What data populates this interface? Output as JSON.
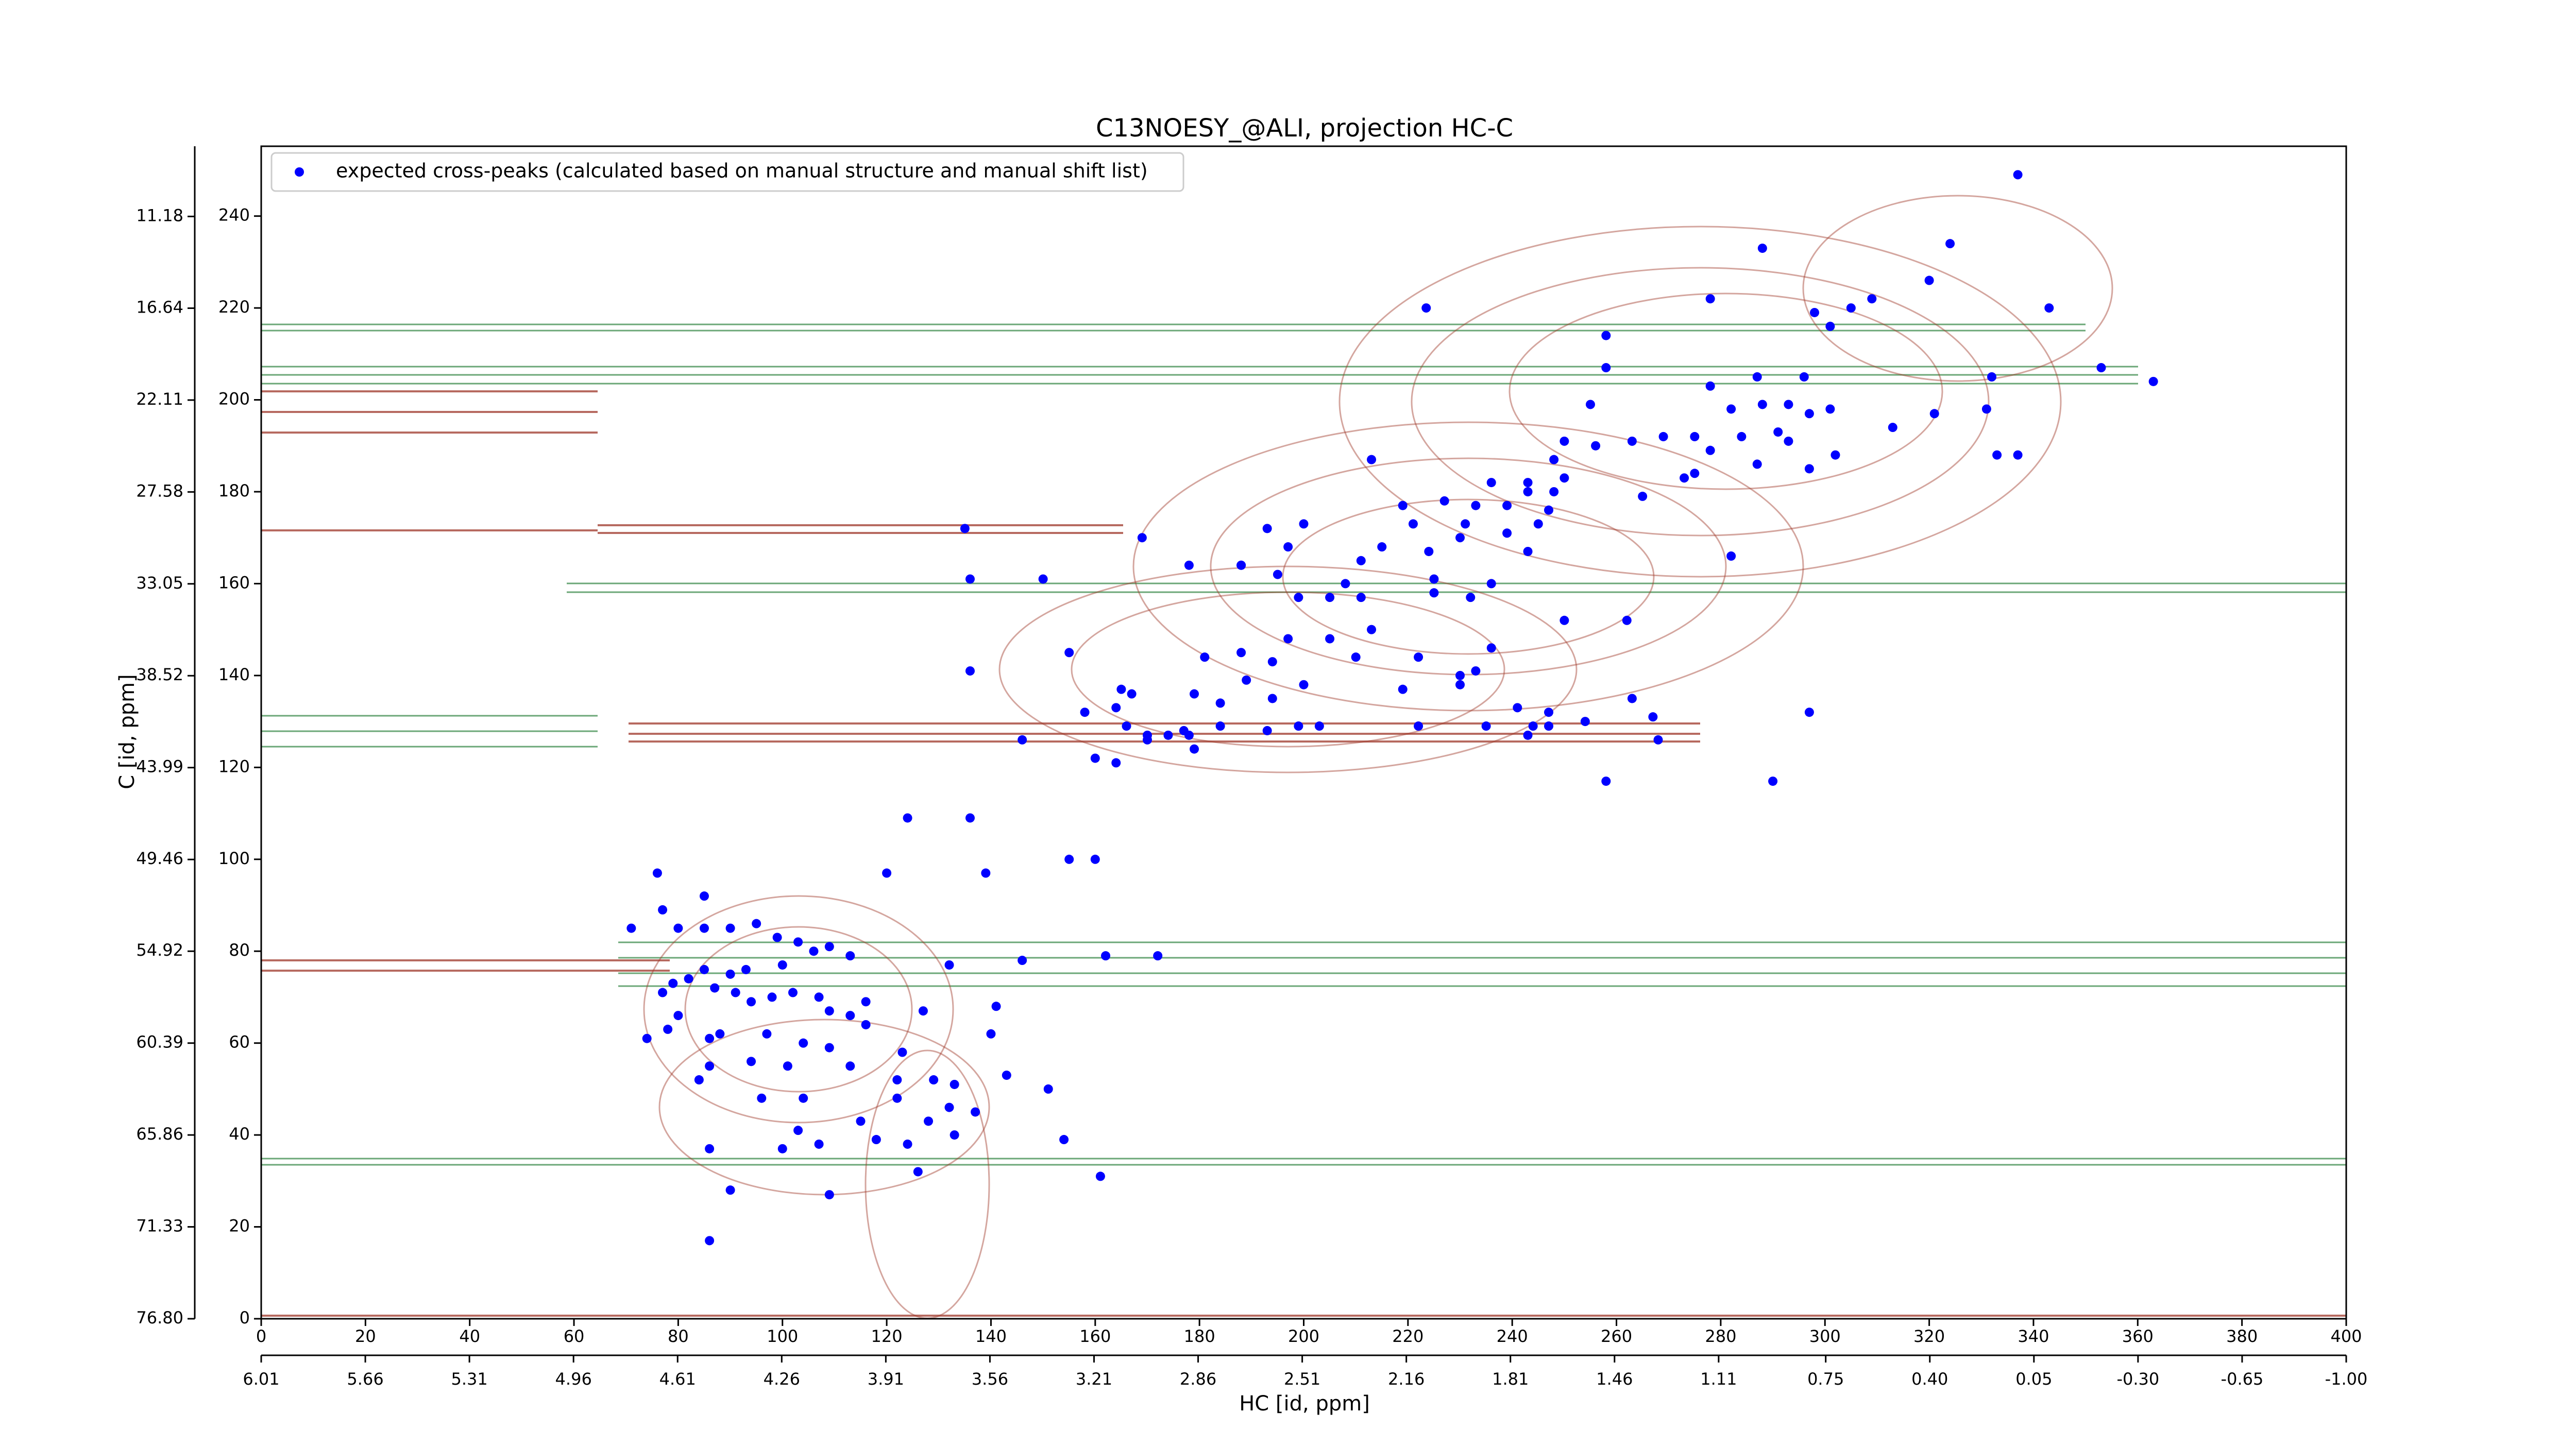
{
  "chart_data": {
    "type": "scatter",
    "title": "C13NOESY_@ALI, projection HC-C",
    "xlabel": "HC [id, ppm]",
    "ylabel": "C [id, ppm]",
    "legend": "upper left",
    "series": [
      {
        "name": "expected cross-peaks (calculated based on manual structure and manual shift list)",
        "color": "#0000ff",
        "x": [
          337,
          288,
          324,
          320,
          223.5,
          278,
          298,
          305,
          309,
          343,
          301,
          353,
          363,
          332,
          258,
          258,
          255,
          278,
          287,
          296,
          282,
          288,
          293,
          297,
          301,
          321,
          331,
          313,
          291,
          284,
          293,
          269,
          275,
          263,
          250,
          248,
          256,
          337,
          333,
          302,
          297,
          287,
          275,
          278,
          236,
          243,
          250,
          248,
          243,
          233,
          239,
          247,
          245,
          231,
          221,
          219,
          227,
          230,
          224,
          239,
          243,
          236,
          232,
          225,
          215,
          211,
          208,
          225,
          265,
          282,
          273,
          213,
          200,
          193,
          197,
          195,
          188,
          199,
          205,
          211,
          213,
          205,
          197,
          194,
          188,
          189,
          181,
          179,
          184,
          194,
          200,
          210,
          222,
          230,
          233,
          236,
          219,
          230,
          250,
          262,
          263,
          247,
          247,
          244,
          243,
          241,
          235,
          222,
          203,
          199,
          193,
          184,
          177,
          174,
          170,
          166,
          164,
          158,
          165,
          167,
          178,
          179,
          170,
          155,
          254,
          267,
          268,
          258,
          290,
          297,
          146,
          160,
          164,
          169,
          178,
          188,
          135,
          136,
          150,
          136,
          124,
          136,
          155,
          160,
          120,
          139,
          162,
          172,
          146,
          132,
          76,
          85,
          71,
          77,
          80,
          85,
          90,
          95,
          99,
          103,
          106,
          109,
          113,
          100,
          93,
          90,
          85,
          82,
          79,
          87,
          91,
          94,
          98,
          102,
          107,
          109,
          113,
          116,
          116,
          80,
          77,
          78,
          74,
          127,
          141,
          86,
          88,
          97,
          104,
          109,
          86,
          94,
          101,
          113,
          123,
          84,
          140,
          122,
          129,
          133,
          143,
          96,
          104,
          122,
          132,
          137,
          151,
          128,
          115,
          103,
          107,
          100,
          118,
          124,
          133,
          86,
          154,
          90,
          109,
          126,
          161,
          86
        ],
        "values": [
          249,
          233,
          234,
          226,
          220,
          222,
          219,
          220,
          222,
          220,
          216,
          207,
          204,
          205,
          214,
          207,
          199,
          203,
          205,
          205,
          198,
          199,
          199,
          197,
          198,
          197,
          198,
          194,
          193,
          192,
          191,
          192,
          192,
          191,
          191,
          187,
          190,
          188,
          188,
          188,
          185,
          186,
          184,
          189,
          182,
          182,
          183,
          180,
          180,
          177,
          177,
          176,
          173,
          173,
          173,
          177,
          178,
          170,
          167,
          171,
          167,
          160,
          157,
          161,
          168,
          165,
          160,
          158,
          179,
          166,
          183,
          187,
          173,
          172,
          168,
          162,
          164,
          157,
          157,
          157,
          150,
          148,
          148,
          143,
          145,
          139,
          144,
          136,
          134,
          135,
          138,
          144,
          144,
          140,
          141,
          146,
          137,
          138,
          152,
          152,
          135,
          132,
          129,
          129,
          127,
          133,
          129,
          129,
          129,
          129,
          128,
          129,
          128,
          127,
          127,
          129,
          133,
          132,
          137,
          136,
          127,
          124,
          126,
          145,
          130,
          131,
          126,
          117,
          117,
          132,
          126,
          122,
          121,
          170,
          164,
          164,
          172,
          161,
          161,
          141,
          109,
          109,
          100,
          100,
          97,
          97,
          79,
          79,
          78,
          77,
          97,
          92,
          85,
          89,
          85,
          85,
          85,
          86,
          83,
          82,
          80,
          81,
          79,
          77,
          76,
          75,
          76,
          74,
          73,
          72,
          71,
          69,
          70,
          71,
          70,
          67,
          66,
          69,
          64,
          66,
          71,
          63,
          61,
          67,
          68,
          61,
          62,
          62,
          60,
          59,
          55,
          56,
          55,
          55,
          58,
          52,
          62,
          52,
          52,
          51,
          53,
          48,
          48,
          48,
          46,
          45,
          50,
          43,
          43,
          41,
          38,
          37,
          39,
          38,
          40,
          37,
          39,
          28,
          27,
          32,
          31,
          17
        ]
      }
    ],
    "xlim": [
      0,
      400
    ],
    "xticks": [
      0,
      20,
      40,
      60,
      80,
      100,
      120,
      140,
      160,
      180,
      200,
      220,
      240,
      260,
      280,
      300,
      320,
      340,
      360,
      380,
      400
    ],
    "ylim": [
      0,
      255.2
    ],
    "yticks": [
      0,
      20,
      40,
      60,
      80,
      100,
      120,
      140,
      160,
      180,
      200,
      220,
      240
    ],
    "x2lim": [
      6.01,
      -1.0
    ],
    "x2ticks": [
      6.01,
      5.66,
      5.31,
      4.96,
      4.61,
      4.26,
      3.91,
      3.56,
      3.21,
      2.86,
      2.51,
      2.16,
      1.81,
      1.46,
      1.11,
      0.75,
      {
        "value": 0.4,
        "label": "0.40"
      },
      0.05,
      {
        "value": -0.3,
        "label": "-0.30"
      },
      -0.65,
      {
        "value": -1.0,
        "label": "-1.00"
      }
    ],
    "y2lim": [
      76.8,
      7.0
    ],
    "y2ticks": [
      {
        "value": 76.8,
        "label": "76.80"
      },
      71.33,
      65.86,
      60.39,
      54.92,
      49.46,
      43.99,
      38.52,
      33.05,
      27.58,
      22.11,
      16.64,
      11.18
    ]
  }
}
